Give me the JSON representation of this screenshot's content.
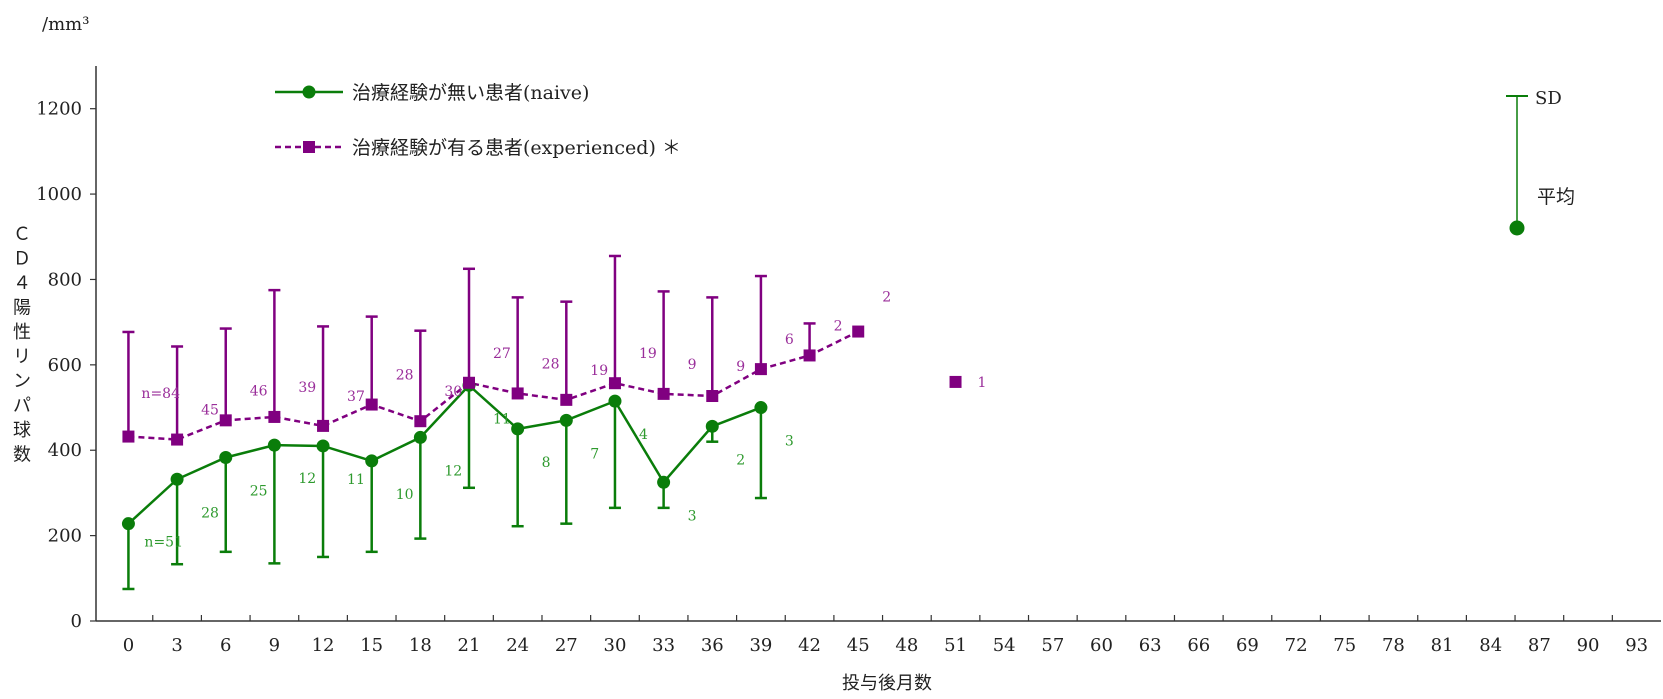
{
  "chart_data": {
    "type": "line",
    "unit_label": "/mm³",
    "ylabel": "ＣＤ４陽性リンパ球数",
    "xlabel": "投与後月数",
    "xlim": [
      -2,
      94.5
    ],
    "ylim": [
      0,
      1300
    ],
    "x_ticks": [
      0,
      3,
      6,
      9,
      12,
      15,
      18,
      21,
      24,
      27,
      30,
      33,
      36,
      39,
      42,
      45,
      48,
      51,
      54,
      57,
      60,
      63,
      66,
      69,
      72,
      75,
      78,
      81,
      84,
      87,
      90,
      93
    ],
    "y_ticks": [
      0,
      200,
      400,
      600,
      800,
      1000,
      1200
    ],
    "series": [
      {
        "name": "治療経験が無い患者(naive)",
        "color": "#0a7d0a",
        "line_style": "solid",
        "marker": "circle",
        "points": [
          {
            "x": 0,
            "y": 228,
            "sd_low": 75,
            "n": "n=51"
          },
          {
            "x": 3,
            "y": 332,
            "sd_low": 133,
            "n": "28"
          },
          {
            "x": 6,
            "y": 383,
            "sd_low": 162,
            "n": "25"
          },
          {
            "x": 9,
            "y": 412,
            "sd_low": 135,
            "n": "12"
          },
          {
            "x": 12,
            "y": 410,
            "sd_low": 150,
            "n": "11"
          },
          {
            "x": 15,
            "y": 375,
            "sd_low": 162,
            "n": "10"
          },
          {
            "x": 18,
            "y": 430,
            "sd_low": 193,
            "n": "12"
          },
          {
            "x": 21,
            "y": 552,
            "sd_low": 312,
            "n": "11"
          },
          {
            "x": 24,
            "y": 450,
            "sd_low": 222,
            "n": "8"
          },
          {
            "x": 27,
            "y": 470,
            "sd_low": 228,
            "n": "7"
          },
          {
            "x": 30,
            "y": 515,
            "sd_low": 265,
            "n": "4"
          },
          {
            "x": 33,
            "y": 325,
            "sd_low": 265,
            "n": "3"
          },
          {
            "x": 36,
            "y": 456,
            "sd_low": 420,
            "n": "2"
          },
          {
            "x": 39,
            "y": 500,
            "sd_low": 288,
            "n": "3"
          }
        ]
      },
      {
        "name": "治療経験が有る患者(experienced) ＊",
        "color": "#800080",
        "line_style": "dashed",
        "marker": "square",
        "points": [
          {
            "x": 0,
            "y": 432,
            "sd_high": 677,
            "n": "n=84"
          },
          {
            "x": 3,
            "y": 425,
            "sd_high": 643,
            "n": "45"
          },
          {
            "x": 6,
            "y": 470,
            "sd_high": 685,
            "n": "46"
          },
          {
            "x": 9,
            "y": 478,
            "sd_high": 775,
            "n": "39"
          },
          {
            "x": 12,
            "y": 457,
            "sd_high": 690,
            "n": "37"
          },
          {
            "x": 15,
            "y": 507,
            "sd_high": 713,
            "n": "28"
          },
          {
            "x": 18,
            "y": 468,
            "sd_high": 680,
            "n": "30"
          },
          {
            "x": 21,
            "y": 558,
            "sd_high": 825,
            "n": "27"
          },
          {
            "x": 24,
            "y": 533,
            "sd_high": 758,
            "n": "28"
          },
          {
            "x": 27,
            "y": 518,
            "sd_high": 748,
            "n": "19"
          },
          {
            "x": 30,
            "y": 557,
            "sd_high": 855,
            "n": "19"
          },
          {
            "x": 33,
            "y": 532,
            "sd_high": 772,
            "n": "9"
          },
          {
            "x": 36,
            "y": 527,
            "sd_high": 758,
            "n": "9"
          },
          {
            "x": 39,
            "y": 590,
            "sd_high": 808,
            "n": "6"
          },
          {
            "x": 42,
            "y": 622,
            "sd_high": 697,
            "n": "2"
          },
          {
            "x": 45,
            "y": 678,
            "n": "2"
          }
        ],
        "isolated_points": [
          {
            "x": 51,
            "y": 560,
            "n": "1"
          }
        ]
      }
    ],
    "key": {
      "sd_label": "SD",
      "mean_label": "平均",
      "color": "#0a7d0a"
    },
    "grid": false
  }
}
